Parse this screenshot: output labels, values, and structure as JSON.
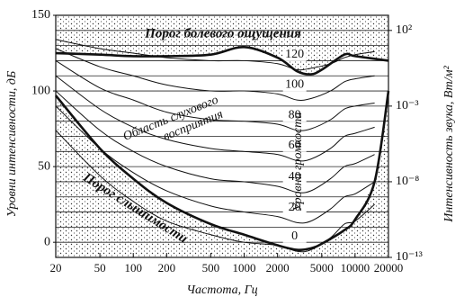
{
  "chart_data": {
    "type": "line",
    "x_label": "Частота, Гц",
    "y_label": "Уровни интенсивности, дБ",
    "y2_label": "Интенсивность звука, Вт/м²",
    "annotations": [
      "Порог болевого ощущения",
      "Область слухового",
      "восприятия",
      "Порог слышимости",
      "Уровни громкости"
    ],
    "x_scale": "log",
    "y2_scale": "log",
    "xlim": [
      20,
      20000
    ],
    "xticks": [
      20,
      50,
      100,
      200,
      500,
      1000,
      2000,
      5000,
      10000,
      20000
    ],
    "ylim": [
      -10,
      150
    ],
    "yticks": [
      0,
      50,
      100,
      150
    ],
    "ygrid": [
      0,
      10,
      20,
      30,
      40,
      50,
      60,
      70,
      80,
      90,
      100,
      110,
      120,
      130,
      140
    ],
    "y2lim": [
      1e-13,
      1000
    ],
    "y2ticks": [
      {
        "value": 100,
        "label": "10²"
      },
      {
        "value": 0.001,
        "label": "10⁻³"
      },
      {
        "value": 1e-08,
        "label": "10⁻⁸"
      },
      {
        "value": 1e-13,
        "label": "10⁻¹³"
      }
    ],
    "threshold_pain": {
      "x": [
        20,
        50,
        100,
        200,
        500,
        1000,
        2000,
        3000,
        4000,
        5000,
        8000,
        10000,
        20000
      ],
      "values": [
        125,
        124,
        123,
        123,
        124,
        129,
        122,
        113,
        111,
        114,
        124,
        123,
        120
      ],
      "color": "#111"
    },
    "threshold_hearing": {
      "x": [
        20,
        50,
        100,
        200,
        500,
        1000,
        2000,
        3000,
        4000,
        5000,
        8000,
        10000,
        15000,
        20000
      ],
      "values": [
        97,
        62,
        42,
        26,
        12,
        5,
        -2,
        -5,
        -4,
        -1,
        8,
        15,
        40,
        100
      ],
      "color": "#111"
    },
    "x": [
      20,
      50,
      100,
      200,
      500,
      1000,
      2000,
      3000,
      4000,
      6000,
      8000,
      10000,
      15000
    ],
    "series": [
      {
        "name": "0",
        "color": "#111",
        "values": [
          74,
          44,
          27,
          14,
          5,
          0,
          -2,
          -6,
          -5,
          3,
          12,
          14,
          25
        ]
      },
      {
        "name": "20",
        "color": "#111",
        "values": [
          90,
          62,
          46,
          34,
          24,
          20,
          17,
          13,
          14,
          22,
          30,
          32,
          40
        ]
      },
      {
        "name": "40",
        "color": "#111",
        "values": [
          100,
          74,
          60,
          50,
          42,
          40,
          37,
          33,
          34,
          42,
          50,
          52,
          58
        ]
      },
      {
        "name": "60",
        "color": "#111",
        "values": [
          110,
          88,
          76,
          68,
          62,
          60,
          58,
          54,
          55,
          62,
          70,
          72,
          76
        ]
      },
      {
        "name": "80",
        "color": "#111",
        "values": [
          120,
          102,
          94,
          86,
          81,
          80,
          78,
          74,
          75,
          81,
          88,
          90,
          92
        ]
      },
      {
        "name": "100",
        "color": "#111",
        "values": [
          128,
          116,
          110,
          104,
          100,
          100,
          98,
          94,
          95,
          100,
          106,
          108,
          110
        ]
      },
      {
        "name": "120",
        "color": "#111",
        "values": [
          134,
          128,
          125,
          122,
          120,
          120,
          118,
          114,
          115,
          118,
          122,
          124,
          126
        ]
      }
    ]
  }
}
